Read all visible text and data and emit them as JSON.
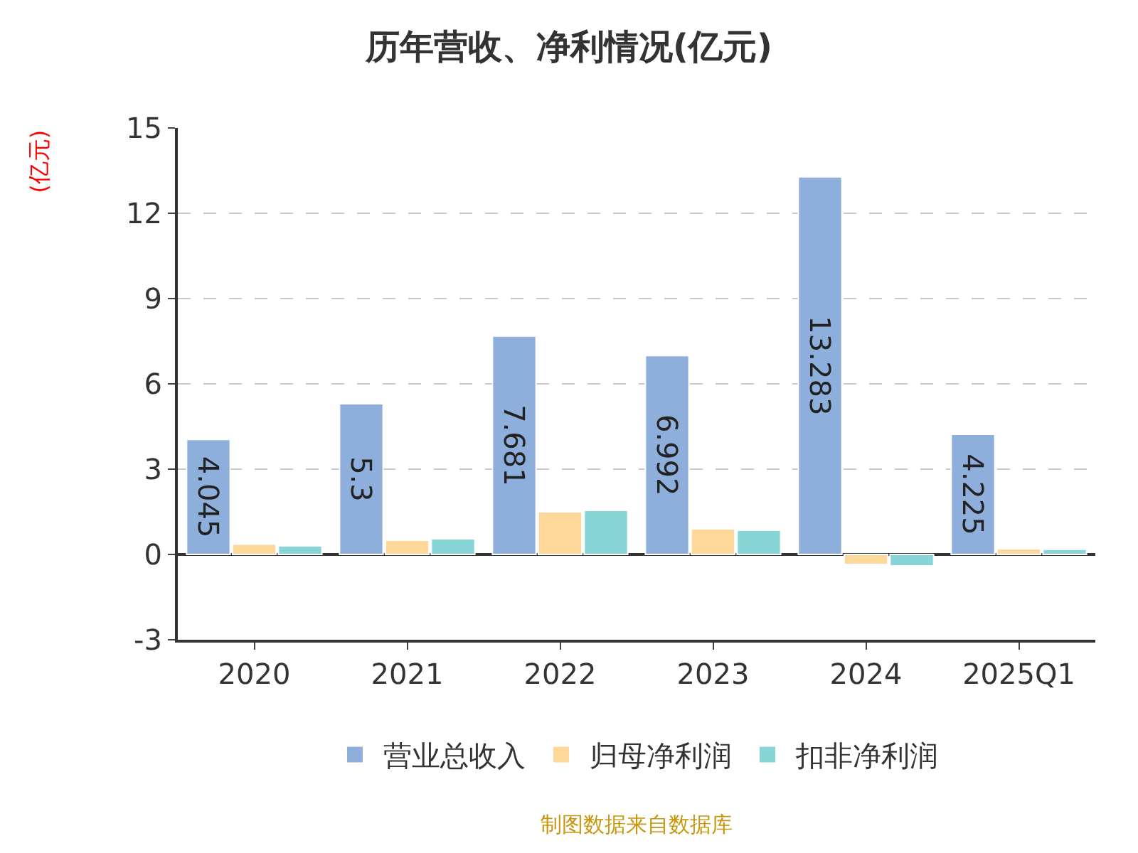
{
  "chart_data": {
    "type": "bar",
    "title": "历年营收、净利情况(亿元)",
    "ylabel": "(亿元)",
    "categories": [
      "2020",
      "2021",
      "2022",
      "2023",
      "2024",
      "2025Q1"
    ],
    "series": [
      {
        "name": "营业总收入",
        "color": "#8eaedb",
        "values": [
          4.045,
          5.3,
          7.681,
          6.992,
          13.283,
          4.225
        ],
        "value_labels": [
          "4.045",
          "5.3",
          "7.681",
          "6.992",
          "13.283",
          "4.225"
        ]
      },
      {
        "name": "归母净利润",
        "color": "#fed89a",
        "values": [
          0.36,
          0.5,
          1.5,
          0.9,
          -0.35,
          0.2
        ]
      },
      {
        "name": "扣非净利润",
        "color": "#88d5d8",
        "values": [
          0.3,
          0.55,
          1.55,
          0.85,
          -0.4,
          0.18
        ]
      }
    ],
    "ylim": [
      -3,
      15
    ],
    "yticks": [
      -3,
      0,
      3,
      6,
      9,
      12,
      15
    ],
    "grid": "y",
    "legend": "bottom",
    "annotations": [
      "制图数据来自数据库"
    ]
  }
}
